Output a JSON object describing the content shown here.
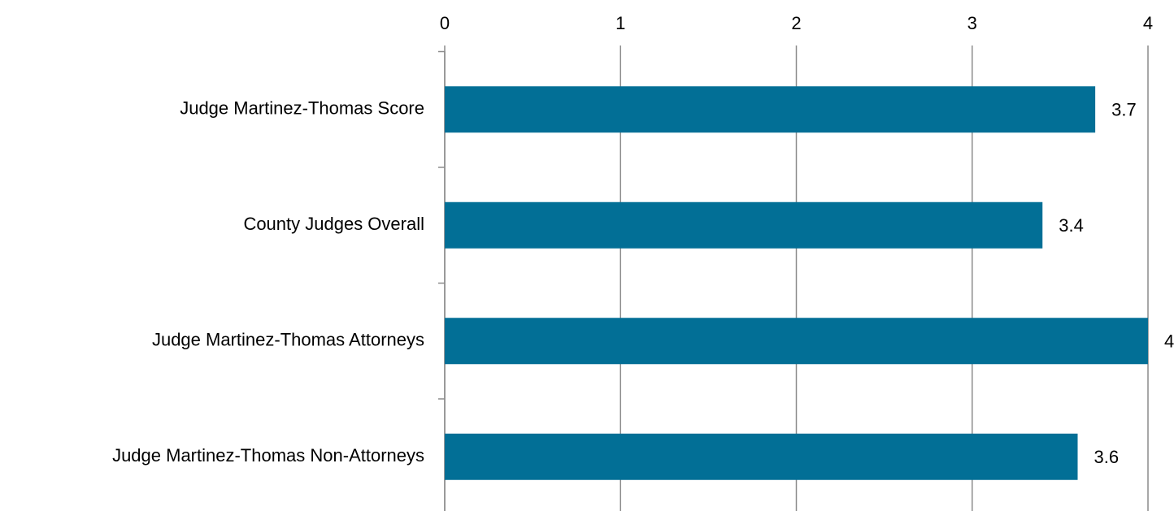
{
  "chart_data": {
    "type": "hbar",
    "categories": [
      "Judge Martinez-Thomas Score",
      "County Judges Overall",
      "Judge Martinez-Thomas Attorneys",
      "Judge Martinez-Thomas Non-Attorneys"
    ],
    "values": [
      3.7,
      3.4,
      4,
      3.6
    ],
    "color": "#026f96",
    "xlim": [
      0,
      4
    ],
    "xticks": [
      0,
      1,
      2,
      3,
      4
    ],
    "grid": true
  }
}
